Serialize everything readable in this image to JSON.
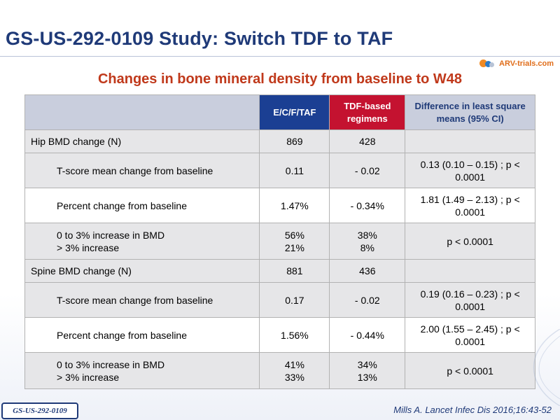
{
  "slide": {
    "title": "GS-US-292-0109 Study: Switch TDF to TAF",
    "subtitle": "Changes in bone mineral density from baseline to W48",
    "logo_text": "ARV-trials.com",
    "study_badge": "GS-US-292-0109",
    "citation": "Mills A. Lancet Infec Dis 2016;16:43-52"
  },
  "table": {
    "headers": [
      "",
      "E/C/F/TAF",
      "TDF-based regimens",
      "Difference in least square means (95% CI)"
    ],
    "rows": [
      {
        "label": "Hip BMD change (N)",
        "c1": "869",
        "c2": "428",
        "c3": ""
      },
      {
        "label": "T-score mean change from baseline",
        "c1": "0.11",
        "c2": "- 0.02",
        "c3": "0.13 (0.10 – 0.15) ; p < 0.0001"
      },
      {
        "label": "Percent change from baseline",
        "c1": "1.47%",
        "c2": "- 0.34%",
        "c3": "1.81 (1.49 – 2.13) ; p < 0.0001"
      },
      {
        "label": "0 to 3% increase in BMD",
        "label2": "> 3% increase",
        "c1": "56%",
        "c1b": "21%",
        "c2": "38%",
        "c2b": "8%",
        "c3": "p < 0.0001"
      },
      {
        "label": "Spine BMD change (N)",
        "c1": "881",
        "c2": "436",
        "c3": ""
      },
      {
        "label": "T-score mean change from baseline",
        "c1": "0.17",
        "c2": "- 0.02",
        "c3": "0.19 (0.16 – 0.23) ; p < 0.0001"
      },
      {
        "label": "Percent change from baseline",
        "c1": "1.56%",
        "c2": "- 0.44%",
        "c3": "2.00 (1.55 – 2.45) ; p < 0.0001"
      },
      {
        "label": "0 to 3% increase in BMD",
        "label2": "> 3% increase",
        "c1": "41%",
        "c1b": "33%",
        "c2": "34%",
        "c2b": "13%",
        "c3": "p < 0.0001"
      }
    ]
  },
  "colors": {
    "title": "#1f3a78",
    "subtitle": "#c0391b",
    "header_taf": "#1b3f93",
    "header_tdf": "#c41230",
    "header_grey": "#c9cedd",
    "row_grey": "#e6e6e8"
  }
}
